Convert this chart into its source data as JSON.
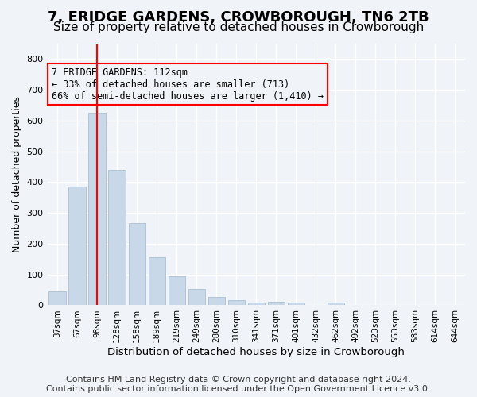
{
  "title": "7, ERIDGE GARDENS, CROWBOROUGH, TN6 2TB",
  "subtitle": "Size of property relative to detached houses in Crowborough",
  "xlabel": "Distribution of detached houses by size in Crowborough",
  "ylabel": "Number of detached properties",
  "categories": [
    "37sqm",
    "67sqm",
    "98sqm",
    "128sqm",
    "158sqm",
    "189sqm",
    "219sqm",
    "249sqm",
    "280sqm",
    "310sqm",
    "341sqm",
    "371sqm",
    "401sqm",
    "432sqm",
    "462sqm",
    "492sqm",
    "523sqm",
    "553sqm",
    "583sqm",
    "614sqm",
    "644sqm"
  ],
  "values": [
    45,
    385,
    625,
    440,
    268,
    155,
    95,
    52,
    28,
    16,
    10,
    11,
    10,
    0,
    8,
    0,
    0,
    0,
    0,
    0,
    0
  ],
  "bar_color": "#c8d8e8",
  "bar_edgecolor": "#a0b8cc",
  "vline_x": 2,
  "vline_color": "red",
  "annotation_text": "7 ERIDGE GARDENS: 112sqm\n← 33% of detached houses are smaller (713)\n66% of semi-detached houses are larger (1,410) →",
  "annotation_box_edgecolor": "red",
  "ylim": [
    0,
    850
  ],
  "yticks": [
    0,
    100,
    200,
    300,
    400,
    500,
    600,
    700,
    800
  ],
  "footer": "Contains HM Land Registry data © Crown copyright and database right 2024.\nContains public sector information licensed under the Open Government Licence v3.0.",
  "background_color": "#f0f4f8",
  "grid_color": "#ffffff",
  "title_fontsize": 13,
  "subtitle_fontsize": 11,
  "footer_fontsize": 8
}
